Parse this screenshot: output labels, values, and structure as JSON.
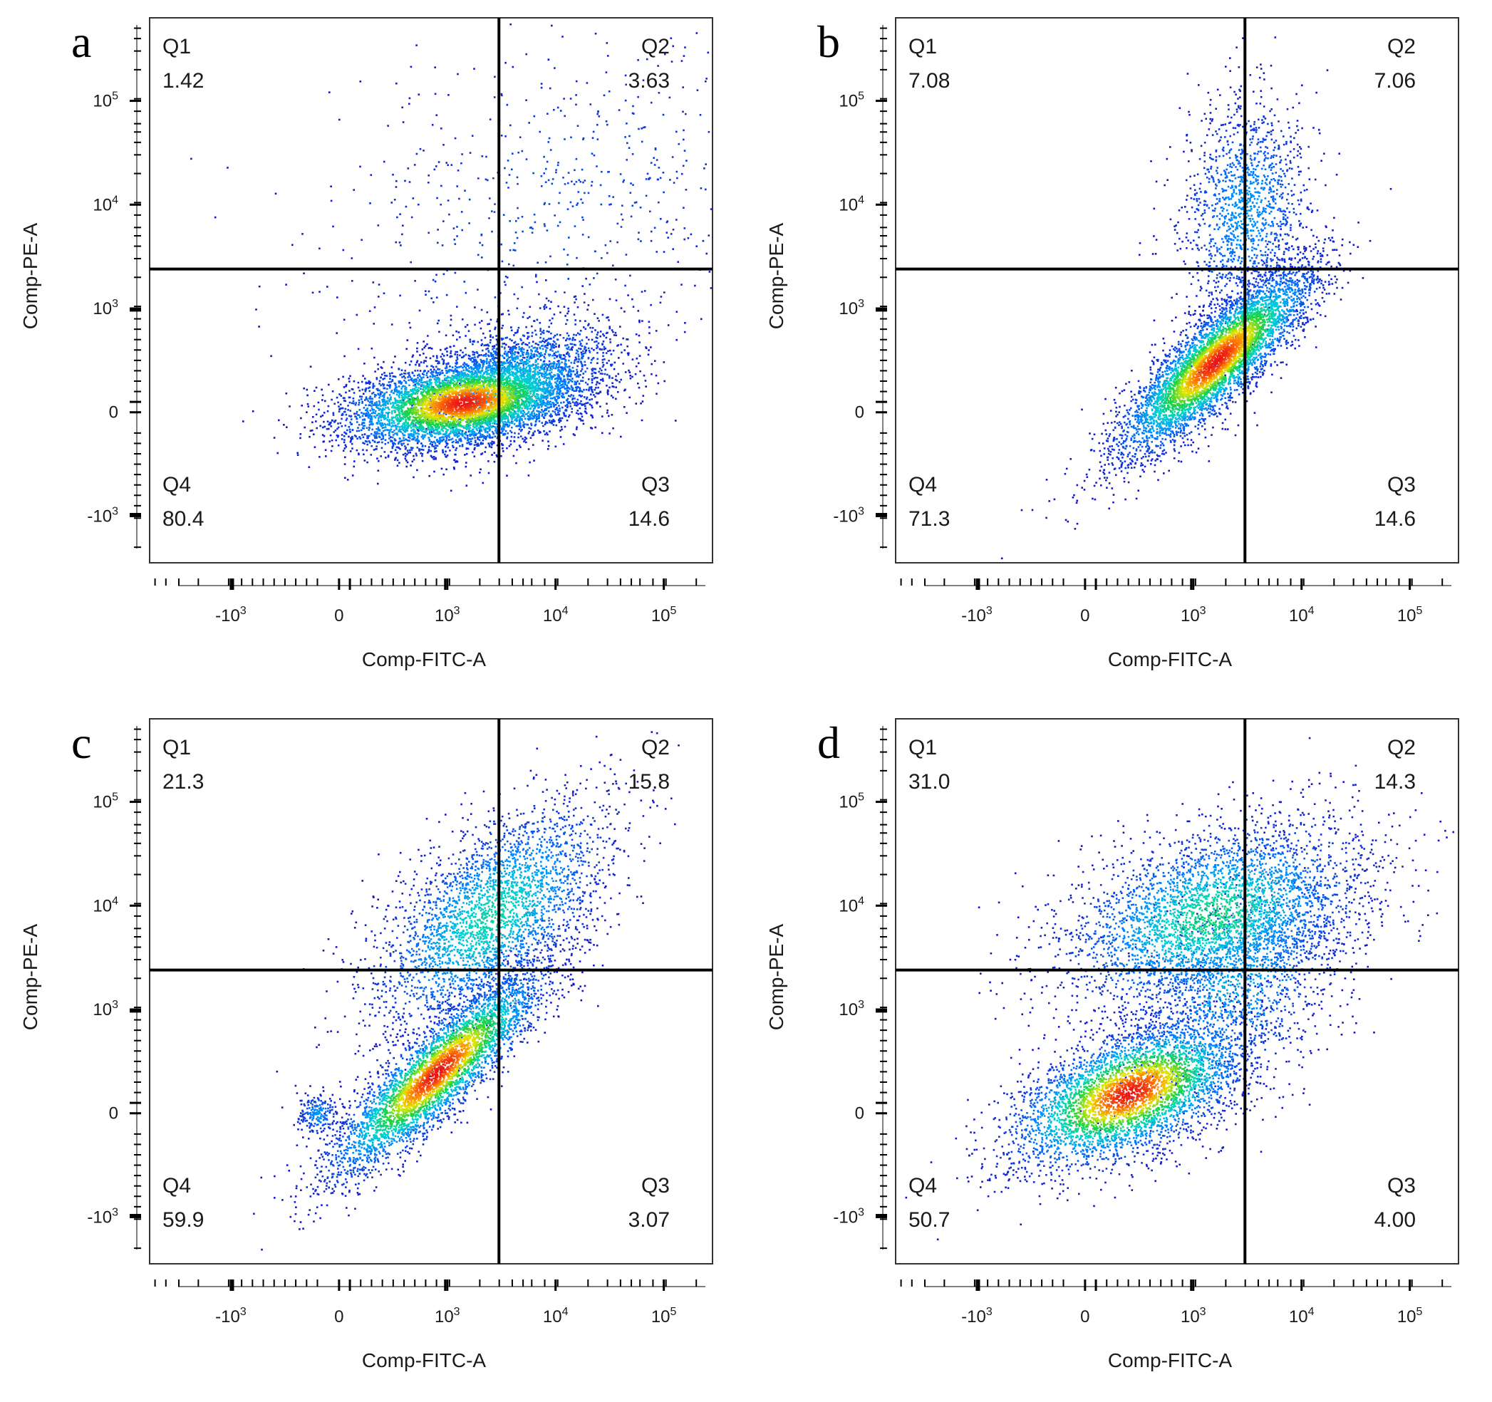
{
  "chart_data": [
    {
      "type": "scatter",
      "subtype": "flow-cytometry-density-plot",
      "panel_label": "a",
      "xlabel": "Comp-FITC-A",
      "ylabel": "Comp-PE-A",
      "x_ticks": [
        {
          "base": "-10",
          "exp": "3",
          "value": -1000
        },
        {
          "base": "0",
          "exp": "",
          "value": 0
        },
        {
          "base": "10",
          "exp": "3",
          "value": 1000
        },
        {
          "base": "10",
          "exp": "4",
          "value": 10000
        },
        {
          "base": "10",
          "exp": "5",
          "value": 100000
        }
      ],
      "y_ticks": [
        {
          "base": "-10",
          "exp": "3",
          "value": -1000
        },
        {
          "base": "0",
          "exp": "",
          "value": 0
        },
        {
          "base": "10",
          "exp": "3",
          "value": 1000
        },
        {
          "base": "10",
          "exp": "4",
          "value": 10000
        },
        {
          "base": "10",
          "exp": "5",
          "value": 100000
        }
      ],
      "gate_x": 3000,
      "gate_y": 2400,
      "quadrants": {
        "Q1": {
          "name": "Q1",
          "value": "1.42"
        },
        "Q2": {
          "name": "Q2",
          "value": "3.63"
        },
        "Q3": {
          "name": "Q3",
          "value": "14.6"
        },
        "Q4": {
          "name": "Q4",
          "value": "80.4"
        }
      },
      "populations": [
        {
          "x": 1400,
          "y": 100,
          "xsd": 0.55,
          "ysd": 0.22,
          "corr": 0.35,
          "n": 5200,
          "amp": 1.0
        },
        {
          "x": 4000,
          "y": 300,
          "xsd": 0.5,
          "ysd": 0.3,
          "corr": 0.4,
          "n": 1800,
          "amp": 0.45
        },
        {
          "x": 12000,
          "y": 12000,
          "xsd": 1.2,
          "ysd": 0.9,
          "corr": 0.3,
          "n": 700,
          "amp": 0.12
        }
      ]
    },
    {
      "type": "scatter",
      "subtype": "flow-cytometry-density-plot",
      "panel_label": "b",
      "xlabel": "Comp-FITC-A",
      "ylabel": "Comp-PE-A",
      "x_ticks": [
        {
          "base": "-10",
          "exp": "3",
          "value": -1000
        },
        {
          "base": "0",
          "exp": "",
          "value": 0
        },
        {
          "base": "10",
          "exp": "3",
          "value": 1000
        },
        {
          "base": "10",
          "exp": "4",
          "value": 10000
        },
        {
          "base": "10",
          "exp": "5",
          "value": 100000
        }
      ],
      "y_ticks": [
        {
          "base": "-10",
          "exp": "3",
          "value": -1000
        },
        {
          "base": "0",
          "exp": "",
          "value": 0
        },
        {
          "base": "10",
          "exp": "3",
          "value": 1000
        },
        {
          "base": "10",
          "exp": "4",
          "value": 10000
        },
        {
          "base": "10",
          "exp": "5",
          "value": 100000
        }
      ],
      "gate_x": 3000,
      "gate_y": 2400,
      "quadrants": {
        "Q1": {
          "name": "Q1",
          "value": "7.08"
        },
        "Q2": {
          "name": "Q2",
          "value": "7.06"
        },
        "Q3": {
          "name": "Q3",
          "value": "14.6"
        },
        "Q4": {
          "name": "Q4",
          "value": "71.3"
        }
      },
      "populations": [
        {
          "x": 1600,
          "y": 500,
          "xsd": 0.45,
          "ysd": 0.45,
          "corr": 0.85,
          "n": 5200,
          "amp": 1.0
        },
        {
          "x": 3000,
          "y": 9000,
          "xsd": 0.3,
          "ysd": 0.55,
          "corr": 0.1,
          "n": 1400,
          "amp": 0.3
        }
      ]
    },
    {
      "type": "scatter",
      "subtype": "flow-cytometry-density-plot",
      "panel_label": "c",
      "xlabel": "Comp-FITC-A",
      "ylabel": "Comp-PE-A",
      "x_ticks": [
        {
          "base": "-10",
          "exp": "3",
          "value": -1000
        },
        {
          "base": "0",
          "exp": "",
          "value": 0
        },
        {
          "base": "10",
          "exp": "3",
          "value": 1000
        },
        {
          "base": "10",
          "exp": "4",
          "value": 10000
        },
        {
          "base": "10",
          "exp": "5",
          "value": 100000
        }
      ],
      "y_ticks": [
        {
          "base": "-10",
          "exp": "3",
          "value": -1000
        },
        {
          "base": "0",
          "exp": "",
          "value": 0
        },
        {
          "base": "10",
          "exp": "3",
          "value": 1000
        },
        {
          "base": "10",
          "exp": "4",
          "value": 10000
        },
        {
          "base": "10",
          "exp": "5",
          "value": 100000
        }
      ],
      "gate_x": 3000,
      "gate_y": 2400,
      "quadrants": {
        "Q1": {
          "name": "Q1",
          "value": "21.3"
        },
        "Q2": {
          "name": "Q2",
          "value": "15.8"
        },
        "Q3": {
          "name": "Q3",
          "value": "3.07"
        },
        "Q4": {
          "name": "Q4",
          "value": "59.9"
        }
      },
      "populations": [
        {
          "x": 900,
          "y": 400,
          "xsd": 0.5,
          "ysd": 0.5,
          "corr": 0.88,
          "n": 4200,
          "amp": 1.0
        },
        {
          "x": 2500,
          "y": 8000,
          "xsd": 0.55,
          "ysd": 0.55,
          "corr": 0.6,
          "n": 3000,
          "amp": 0.5
        },
        {
          "x": -200,
          "y": 0,
          "xsd": 0.1,
          "ysd": 0.1,
          "corr": 0.0,
          "n": 200,
          "amp": 0.3
        }
      ]
    },
    {
      "type": "scatter",
      "subtype": "flow-cytometry-density-plot",
      "panel_label": "d",
      "xlabel": "Comp-FITC-A",
      "ylabel": "Comp-PE-A",
      "x_ticks": [
        {
          "base": "-10",
          "exp": "3",
          "value": -1000
        },
        {
          "base": "0",
          "exp": "",
          "value": 0
        },
        {
          "base": "10",
          "exp": "3",
          "value": 1000
        },
        {
          "base": "10",
          "exp": "4",
          "value": 10000
        },
        {
          "base": "10",
          "exp": "5",
          "value": 100000
        }
      ],
      "y_ticks": [
        {
          "base": "-10",
          "exp": "3",
          "value": -1000
        },
        {
          "base": "0",
          "exp": "",
          "value": 0
        },
        {
          "base": "10",
          "exp": "3",
          "value": 1000
        },
        {
          "base": "10",
          "exp": "4",
          "value": 10000
        },
        {
          "base": "10",
          "exp": "5",
          "value": 100000
        }
      ],
      "gate_x": 3000,
      "gate_y": 2400,
      "quadrants": {
        "Q1": {
          "name": "Q1",
          "value": "31.0"
        },
        "Q2": {
          "name": "Q2",
          "value": "14.3"
        },
        "Q3": {
          "name": "Q3",
          "value": "4.00"
        },
        "Q4": {
          "name": "Q4",
          "value": "50.7"
        }
      },
      "populations": [
        {
          "x": 400,
          "y": 200,
          "xsd": 0.55,
          "ysd": 0.35,
          "corr": 0.55,
          "n": 4200,
          "amp": 1.0
        },
        {
          "x": 1500,
          "y": 8000,
          "xsd": 0.7,
          "ysd": 0.45,
          "corr": 0.4,
          "n": 3500,
          "amp": 0.55
        },
        {
          "x": 2500,
          "y": 2000,
          "xsd": 0.55,
          "ysd": 0.6,
          "corr": 0.5,
          "n": 1500,
          "amp": 0.35
        }
      ]
    }
  ]
}
